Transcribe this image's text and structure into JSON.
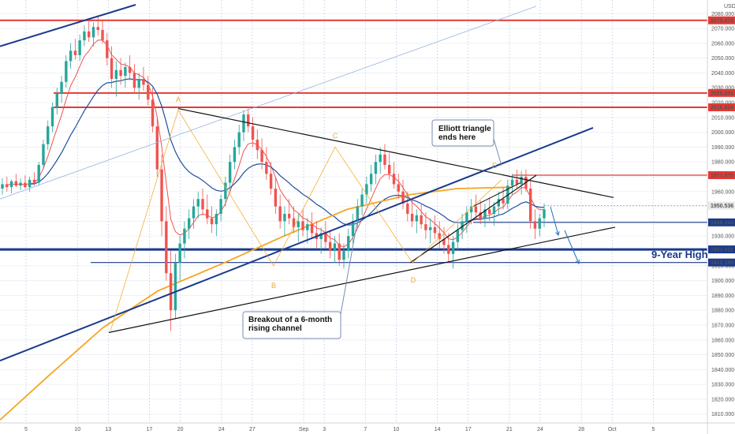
{
  "chart_data": {
    "type": "candlestick",
    "currency": "USD",
    "y_ticks": [
      2080,
      2070,
      2060,
      2050,
      2040,
      2030,
      2020,
      2010,
      2000,
      1990,
      1980,
      1970,
      1960,
      1950,
      1940,
      1930,
      1920,
      1910,
      1900,
      1890,
      1880,
      1870,
      1860,
      1850,
      1840,
      1830,
      1820,
      1810
    ],
    "ylim": [
      1804,
      2086
    ],
    "x_ticks": [
      {
        "label": "5",
        "day": 5
      },
      {
        "label": "10",
        "day": 10
      },
      {
        "label": "13",
        "day": 13
      },
      {
        "label": "17",
        "day": 17
      },
      {
        "label": "20",
        "day": 20
      },
      {
        "label": "24",
        "day": 24
      },
      {
        "label": "27",
        "day": 27
      },
      {
        "label": "Sep",
        "day": 32
      },
      {
        "label": "3",
        "day": 34
      },
      {
        "label": "7",
        "day": 38
      },
      {
        "label": "10",
        "day": 41
      },
      {
        "label": "14",
        "day": 45
      },
      {
        "label": "17",
        "day": 48
      },
      {
        "label": "21",
        "day": 52
      },
      {
        "label": "24",
        "day": 55
      },
      {
        "label": "28",
        "day": 59
      },
      {
        "label": "Oct",
        "day": 62
      },
      {
        "label": "5",
        "day": 66
      }
    ],
    "horizontal_levels": [
      {
        "value": 2075.479,
        "label": "2075.479",
        "color": "#e53935",
        "weight": "thick"
      },
      {
        "value": 2026.504,
        "label": "2026.504",
        "color": "#e53935",
        "weight": "thick"
      },
      {
        "value": 2016.824,
        "label": "2016.824",
        "color": "#e53935",
        "weight": "thick"
      },
      {
        "value": 1971.075,
        "label": "1971.075",
        "color": "#e53935",
        "weight": "thin"
      },
      {
        "value": 1950.536,
        "label": "1950.536",
        "color": "#9e9e9e",
        "weight": "current"
      },
      {
        "value": 1939.243,
        "label": "1939.243",
        "color": "#1a3a8c",
        "weight": "thin"
      },
      {
        "value": 1921.011,
        "label": "1921.011",
        "color": "#1a3a8c",
        "weight": "thick"
      },
      {
        "value": 1912.18,
        "label": "1912.180",
        "color": "#1a3a8c",
        "weight": "thin"
      }
    ],
    "candles": [
      [
        0,
        1962,
        1969,
        1958,
        1965
      ],
      [
        0.35,
        1965,
        1970,
        1960,
        1963
      ],
      [
        0.7,
        1963,
        1968,
        1959,
        1967
      ],
      [
        1.05,
        1967,
        1972,
        1963,
        1964
      ],
      [
        1.4,
        1964,
        1969,
        1961,
        1966
      ],
      [
        1.75,
        1966,
        1971,
        1962,
        1963
      ],
      [
        2.1,
        1963,
        1970,
        1960,
        1968
      ],
      [
        2.45,
        1968,
        1973,
        1964,
        1966
      ],
      [
        2.8,
        1966,
        1980,
        1964,
        1978
      ],
      [
        3.15,
        1978,
        1995,
        1975,
        1992
      ],
      [
        3.5,
        1992,
        2008,
        1988,
        2004
      ],
      [
        3.85,
        2004,
        2020,
        2000,
        2017
      ],
      [
        4.2,
        2017,
        2030,
        2012,
        2026
      ],
      [
        4.55,
        2026,
        2038,
        2020,
        2034
      ],
      [
        4.9,
        2034,
        2052,
        2030,
        2048
      ],
      [
        5.25,
        2048,
        2060,
        2043,
        2055
      ],
      [
        5.6,
        2055,
        2063,
        2049,
        2052
      ],
      [
        5.95,
        2052,
        2066,
        2048,
        2062
      ],
      [
        6.3,
        2062,
        2072,
        2058,
        2068
      ],
      [
        6.65,
        2068,
        2076,
        2061,
        2064
      ],
      [
        7,
        2064,
        2074,
        2058,
        2071
      ],
      [
        7.35,
        2071,
        2078,
        2065,
        2069
      ],
      [
        7.7,
        2069,
        2075,
        2060,
        2062
      ],
      [
        8.05,
        2062,
        2067,
        2045,
        2050
      ],
      [
        8.4,
        2050,
        2058,
        2030,
        2036
      ],
      [
        8.75,
        2036,
        2048,
        2024,
        2042
      ],
      [
        9.1,
        2042,
        2050,
        2032,
        2038
      ],
      [
        9.45,
        2038,
        2047,
        2030,
        2044
      ],
      [
        9.8,
        2044,
        2052,
        2035,
        2040
      ],
      [
        10.15,
        2040,
        2046,
        2026,
        2030
      ],
      [
        10.5,
        2030,
        2040,
        2022,
        2036
      ],
      [
        10.85,
        2036,
        2044,
        2028,
        2032
      ],
      [
        11.2,
        2032,
        2038,
        2018,
        2022
      ],
      [
        11.55,
        2022,
        2030,
        2000,
        2004
      ],
      [
        11.9,
        2004,
        2010,
        1970,
        1975
      ],
      [
        12.25,
        1975,
        1985,
        1930,
        1940
      ],
      [
        12.6,
        1940,
        1950,
        1900,
        1905
      ],
      [
        12.95,
        1905,
        1920,
        1866,
        1880
      ],
      [
        13.3,
        1880,
        1918,
        1874,
        1912
      ],
      [
        13.65,
        1912,
        1930,
        1900,
        1925
      ],
      [
        14,
        1925,
        1940,
        1915,
        1935
      ],
      [
        14.35,
        1935,
        1948,
        1928,
        1942
      ],
      [
        14.7,
        1942,
        1955,
        1935,
        1950
      ],
      [
        15.05,
        1950,
        1960,
        1942,
        1955
      ],
      [
        15.4,
        1955,
        1962,
        1944,
        1948
      ],
      [
        15.75,
        1948,
        1958,
        1938,
        1942
      ],
      [
        16.1,
        1942,
        1950,
        1932,
        1938
      ],
      [
        16.45,
        1938,
        1948,
        1930,
        1945
      ],
      [
        16.8,
        1945,
        1958,
        1940,
        1955
      ],
      [
        17.15,
        1955,
        1970,
        1950,
        1966
      ],
      [
        17.5,
        1966,
        1985,
        1960,
        1980
      ],
      [
        17.85,
        1980,
        1995,
        1975,
        1990
      ],
      [
        18.2,
        1990,
        2005,
        1985,
        2000
      ],
      [
        18.55,
        2000,
        2015,
        1994,
        2012
      ],
      [
        18.9,
        2012,
        2016,
        2000,
        2004
      ],
      [
        19.25,
        2004,
        2010,
        1990,
        1995
      ],
      [
        19.6,
        1995,
        2002,
        1982,
        1988
      ],
      [
        19.95,
        1988,
        1996,
        1975,
        1980
      ],
      [
        20.3,
        1980,
        1990,
        1968,
        1972
      ],
      [
        20.65,
        1972,
        1980,
        1958,
        1962
      ],
      [
        21,
        1962,
        1970,
        1945,
        1950
      ],
      [
        21.35,
        1950,
        1958,
        1935,
        1940
      ],
      [
        21.7,
        1940,
        1950,
        1930,
        1945
      ],
      [
        22.05,
        1945,
        1955,
        1938,
        1942
      ],
      [
        22.4,
        1942,
        1950,
        1932,
        1936
      ],
      [
        22.75,
        1936,
        1945,
        1926,
        1940
      ],
      [
        23.1,
        1940,
        1948,
        1930,
        1934
      ],
      [
        23.45,
        1934,
        1942,
        1925,
        1938
      ],
      [
        23.8,
        1938,
        1946,
        1928,
        1932
      ],
      [
        24.15,
        1932,
        1940,
        1922,
        1928
      ],
      [
        24.5,
        1928,
        1936,
        1918,
        1932
      ],
      [
        24.85,
        1932,
        1940,
        1922,
        1926
      ],
      [
        25.2,
        1926,
        1934,
        1915,
        1920
      ],
      [
        25.55,
        1920,
        1930,
        1912,
        1925
      ],
      [
        25.9,
        1925,
        1932,
        1910,
        1914
      ],
      [
        26.25,
        1914,
        1925,
        1908,
        1920
      ],
      [
        26.6,
        1920,
        1935,
        1915,
        1930
      ],
      [
        26.95,
        1930,
        1945,
        1925,
        1940
      ],
      [
        27.3,
        1940,
        1955,
        1935,
        1950
      ],
      [
        27.65,
        1950,
        1962,
        1944,
        1958
      ],
      [
        28,
        1958,
        1970,
        1952,
        1965
      ],
      [
        28.35,
        1965,
        1978,
        1960,
        1972
      ],
      [
        28.7,
        1972,
        1985,
        1965,
        1980
      ],
      [
        29.05,
        1980,
        1990,
        1972,
        1985
      ],
      [
        29.4,
        1985,
        1992,
        1975,
        1978
      ],
      [
        29.75,
        1978,
        1986,
        1968,
        1972
      ],
      [
        30.1,
        1972,
        1980,
        1962,
        1965
      ],
      [
        30.45,
        1965,
        1972,
        1955,
        1960
      ],
      [
        30.8,
        1960,
        1968,
        1948,
        1952
      ],
      [
        31.15,
        1952,
        1960,
        1940,
        1945
      ],
      [
        31.5,
        1945,
        1955,
        1936,
        1940
      ],
      [
        31.85,
        1940,
        1948,
        1932,
        1944
      ],
      [
        32.2,
        1944,
        1952,
        1935,
        1938
      ],
      [
        32.55,
        1938,
        1946,
        1928,
        1934
      ],
      [
        32.9,
        1934,
        1942,
        1925,
        1936
      ],
      [
        33.25,
        1936,
        1944,
        1928,
        1932
      ],
      [
        33.6,
        1932,
        1940,
        1922,
        1928
      ],
      [
        33.95,
        1928,
        1936,
        1918,
        1924
      ],
      [
        34.3,
        1924,
        1932,
        1912,
        1918
      ],
      [
        34.65,
        1918,
        1930,
        1908,
        1926
      ],
      [
        35,
        1926,
        1938,
        1920,
        1934
      ],
      [
        35.35,
        1934,
        1945,
        1928,
        1940
      ],
      [
        35.7,
        1940,
        1950,
        1932,
        1946
      ],
      [
        36.05,
        1946,
        1955,
        1938,
        1950
      ],
      [
        36.4,
        1950,
        1958,
        1942,
        1946
      ],
      [
        36.75,
        1946,
        1954,
        1938,
        1942
      ],
      [
        37.1,
        1942,
        1952,
        1936,
        1948
      ],
      [
        37.45,
        1948,
        1956,
        1940,
        1945
      ],
      [
        37.8,
        1945,
        1953,
        1937,
        1950
      ],
      [
        38.15,
        1950,
        1960,
        1944,
        1955
      ],
      [
        38.5,
        1955,
        1963,
        1948,
        1952
      ],
      [
        38.85,
        1952,
        1968,
        1948,
        1964
      ],
      [
        39.2,
        1964,
        1972,
        1958,
        1968
      ],
      [
        39.55,
        1968,
        1975,
        1962,
        1965
      ],
      [
        39.9,
        1965,
        1974,
        1958,
        1970
      ],
      [
        40.25,
        1970,
        1975,
        1960,
        1962
      ],
      [
        40.6,
        1962,
        1968,
        1935,
        1940
      ],
      [
        40.95,
        1940,
        1948,
        1928,
        1935
      ],
      [
        41.3,
        1935,
        1945,
        1930,
        1942
      ],
      [
        41.65,
        1942,
        1952,
        1936,
        1948
      ]
    ],
    "wave_labels": [
      "A",
      "B",
      "C",
      "D",
      "E"
    ],
    "annotations": [
      {
        "id": "elliott",
        "lines": [
          "Elliott triangle",
          "ends here"
        ]
      },
      {
        "id": "breakout",
        "lines": [
          "Breakout of a 6-month",
          "rising channel"
        ]
      },
      {
        "id": "nine_year",
        "text": "9-Year High"
      }
    ],
    "colors": {
      "up": "#26a69a",
      "down": "#ef5350",
      "ema_fast": "#ef5350",
      "ema_mid": "#1e4fa0",
      "ema_slow": "#f5a623",
      "trendline": "#111111",
      "channel": "#1a3a8c"
    }
  }
}
